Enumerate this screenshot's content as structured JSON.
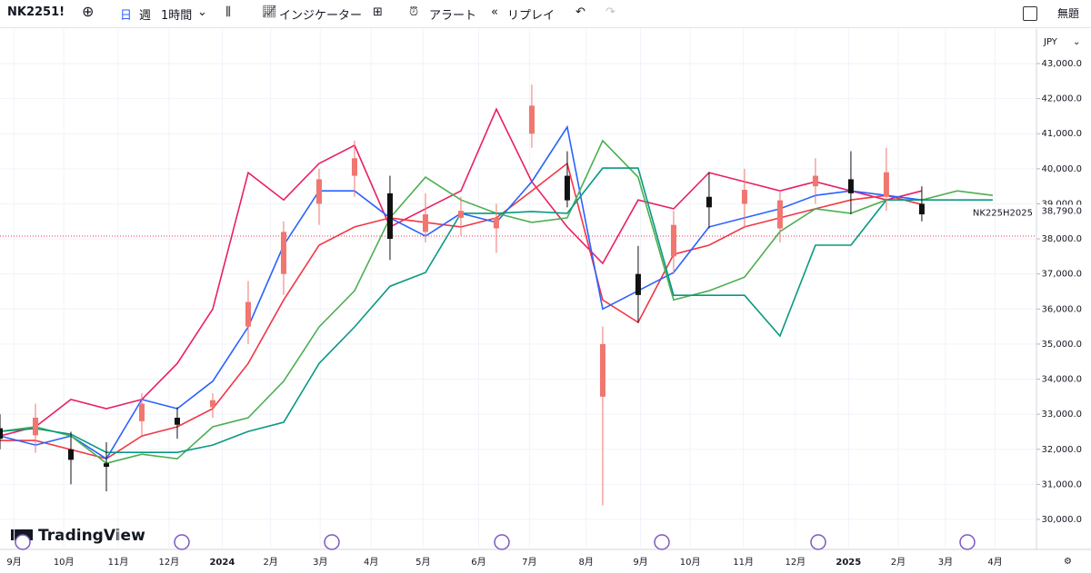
{
  "toolbar": {
    "symbol": "NK2251!",
    "day": "日",
    "week": "週",
    "interval": "1時間",
    "indicators": "インジケーター",
    "alert": "アラート",
    "replay": "リプレイ",
    "layout_name": "無題"
  },
  "currency": "JPY",
  "brand": "TradingView",
  "chart_data": {
    "type": "candlestick",
    "xlim": [
      0,
      87.7
    ],
    "xticks": [
      {
        "value": 1.2,
        "label": "9月"
      },
      {
        "value": 5.4,
        "label": "10月"
      },
      {
        "value": 10,
        "label": "11月"
      },
      {
        "value": 14.3,
        "label": "12月"
      },
      {
        "value": 18.8,
        "label": "2024"
      },
      {
        "value": 22.9,
        "label": "2月"
      },
      {
        "value": 27.1,
        "label": "3月"
      },
      {
        "value": 31.4,
        "label": "4月"
      },
      {
        "value": 35.8,
        "label": "5月"
      },
      {
        "value": 40.5,
        "label": "6月"
      },
      {
        "value": 44.8,
        "label": "7月"
      },
      {
        "value": 49.6,
        "label": "8月"
      },
      {
        "value": 54.2,
        "label": "9月"
      },
      {
        "value": 58.4,
        "label": "10月"
      },
      {
        "value": 62.9,
        "label": "11月"
      },
      {
        "value": 67.3,
        "label": "12月"
      },
      {
        "value": 71.8,
        "label": "2025"
      },
      {
        "value": 76,
        "label": "2月"
      },
      {
        "value": 80,
        "label": "3月"
      },
      {
        "value": 84.2,
        "label": "4月"
      }
    ],
    "ylim": [
      29145,
      43984
    ],
    "yticks": [
      {
        "value": 30000,
        "label": "30,000.0"
      },
      {
        "value": 31000,
        "label": "31,000.0"
      },
      {
        "value": 32000,
        "label": "32,000.0"
      },
      {
        "value": 33000,
        "label": "33,000.0"
      },
      {
        "value": 34000,
        "label": "34,000.0"
      },
      {
        "value": 35000,
        "label": "35,000.0"
      },
      {
        "value": 36000,
        "label": "36,000.0"
      },
      {
        "value": 37000,
        "label": "37,000.0"
      },
      {
        "value": 38000,
        "label": "38,000.0"
      },
      {
        "value": 39000,
        "label": "39,000.0"
      },
      {
        "value": 40000,
        "label": "40,000.0"
      },
      {
        "value": 41000,
        "label": "41,000.0"
      },
      {
        "value": 42000,
        "label": "42,000.0"
      },
      {
        "value": 43000,
        "label": "43,000.0"
      }
    ],
    "grid": true,
    "candles": {
      "x": [
        0,
        3,
        6,
        9,
        12,
        15,
        18,
        21,
        24,
        27,
        30,
        33,
        36,
        39,
        42,
        45,
        48,
        51,
        54,
        57,
        60,
        63,
        66,
        69,
        72,
        75,
        78
      ],
      "open": [
        32600,
        32400,
        32000,
        31600,
        32800,
        32900,
        33200,
        35500,
        37000,
        39000,
        39800,
        39300,
        38200,
        38600,
        38300,
        41000,
        39800,
        33500,
        37000,
        37500,
        39200,
        39000,
        38300,
        39500,
        39700,
        39200,
        39000
      ],
      "high": [
        33000,
        33300,
        32500,
        32200,
        33600,
        33200,
        33600,
        36800,
        38500,
        40000,
        40800,
        39800,
        39300,
        39200,
        39000,
        42400,
        40500,
        35500,
        37800,
        38800,
        39900,
        40000,
        39400,
        40300,
        40500,
        40600,
        39500
      ],
      "low": [
        32000,
        31900,
        31000,
        30800,
        32400,
        32300,
        32900,
        35000,
        36400,
        38400,
        39200,
        37400,
        37900,
        38100,
        37600,
        40600,
        38900,
        30400,
        35600,
        37000,
        38300,
        38300,
        37900,
        39000,
        38700,
        38800,
        38500
      ],
      "close": [
        32300,
        32900,
        31700,
        31500,
        33300,
        32700,
        33400,
        36200,
        38200,
        39700,
        40300,
        38000,
        38700,
        38800,
        38600,
        41800,
        39100,
        35000,
        36400,
        38400,
        38900,
        39400,
        39100,
        39800,
        39300,
        39900,
        38700
      ],
      "up_color": "#f0766f",
      "down_color": "#111111"
    },
    "x": [
      0,
      3,
      6,
      9,
      12,
      15,
      18,
      21,
      24,
      27,
      30,
      33,
      36,
      39,
      42,
      45,
      48,
      51,
      54,
      57,
      60,
      63,
      66,
      69,
      72,
      75,
      78,
      81,
      84
    ],
    "series": [
      {
        "color": "#e91e63",
        "values": [
          32380,
          32640,
          33420,
          33160,
          33420,
          34450,
          36000,
          39890,
          39110,
          40150,
          40670,
          38340,
          38860,
          39370,
          41700,
          39630,
          38340,
          37300,
          39110,
          38860,
          39890,
          39630,
          39370,
          39630,
          39370,
          39110,
          39370,
          null,
          null
        ]
      },
      {
        "color": "#f23645",
        "values": [
          32250,
          32250,
          31990,
          31730,
          32380,
          32640,
          33160,
          34450,
          36260,
          37820,
          38340,
          38600,
          38470,
          38340,
          38600,
          39370,
          40150,
          36260,
          35620,
          37560,
          37820,
          38340,
          38600,
          38860,
          39110,
          39240,
          38980,
          null,
          null
        ]
      },
      {
        "color": "#2962ff",
        "values": [
          32380,
          32120,
          32380,
          31730,
          33420,
          33160,
          33940,
          35490,
          37820,
          39370,
          39370,
          38600,
          38080,
          38730,
          38470,
          39630,
          41190,
          36000,
          36520,
          37040,
          38340,
          38600,
          38860,
          39240,
          39370,
          39240,
          39110,
          null,
          null
        ]
      },
      {
        "color": "#4caf50",
        "values": [
          32510,
          32640,
          32380,
          31600,
          31860,
          31730,
          32640,
          32900,
          33940,
          35490,
          36520,
          38600,
          39760,
          39110,
          38730,
          38470,
          38600,
          40800,
          39760,
          36260,
          36520,
          36910,
          38210,
          38860,
          38730,
          39110,
          39110,
          39370,
          39240
        ]
      },
      {
        "color": "#089981",
        "values": [
          32510,
          32590,
          32430,
          31910,
          31910,
          31910,
          32120,
          32510,
          32770,
          34450,
          35490,
          36650,
          37040,
          38730,
          38730,
          38780,
          38730,
          40020,
          40020,
          36390,
          36390,
          36390,
          35230,
          37820,
          37820,
          39110,
          39110,
          39110,
          39110
        ]
      }
    ],
    "current_price": {
      "name": "NK225H2025",
      "value": 38790,
      "label": "38,790.0"
    },
    "dotted_line": 38080
  }
}
